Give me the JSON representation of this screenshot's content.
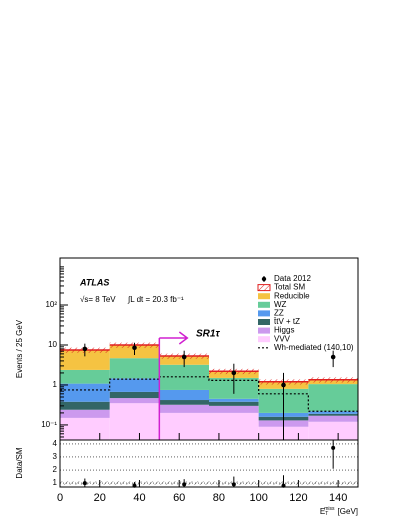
{
  "chart_data": {
    "type": "stacked_histogram",
    "y_label": "Events / 25 GeV",
    "ratio_label": "Data/SM",
    "x_label": {
      "symbol": "E",
      "sub": "T",
      "sup": "miss",
      "unit": "[GeV]"
    },
    "experiment": "ATLAS",
    "energy": "√s= 8 TeV",
    "luminosity": "∫L dt = 20.3 fb⁻¹",
    "region": "SR1τ",
    "cut": 50,
    "bins": [
      0,
      25,
      50,
      75,
      100,
      125,
      150
    ],
    "xlim": [
      0,
      150
    ],
    "xticks": [
      0,
      20,
      40,
      60,
      80,
      100,
      120,
      140
    ],
    "ylim": [
      0.042,
      1500
    ],
    "log_y": true,
    "yticks": [
      {
        "value": 0.1,
        "label": "10⁻¹"
      },
      1,
      10,
      {
        "value": 100,
        "label": "10²"
      }
    ],
    "stack": [
      {
        "name": "VVV",
        "color": "#ffccff",
        "values": [
          0.15,
          0.35,
          0.2,
          0.2,
          0.09,
          0.12
        ]
      },
      {
        "name": "Higgs",
        "color": "#cc99ee",
        "values": [
          0.09,
          0.12,
          0.12,
          0.1,
          0.04,
          0.05
        ]
      },
      {
        "name": "t̄tV + tZ",
        "color": "#336666",
        "values": [
          0.14,
          0.2,
          0.1,
          0.08,
          0.03,
          0.02
        ]
      },
      {
        "name": "ZZ",
        "color": "#5599ee",
        "values": [
          0.7,
          0.8,
          0.33,
          0.07,
          0.04,
          0.03
        ]
      },
      {
        "name": "WZ",
        "color": "#66cc99",
        "values": [
          1.3,
          3.2,
          2.45,
          1.05,
          0.6,
          0.83
        ]
      },
      {
        "name": "Reducible",
        "color": "#f5c342",
        "values": [
          5.1,
          5.3,
          2.1,
          0.7,
          0.4,
          0.3
        ]
      }
    ],
    "total_name": "Total SM",
    "total_color": "#e02020",
    "data": {
      "name": "Data 2012",
      "values": [
        8,
        8.5,
        5,
        2,
        1,
        5
      ],
      "errors": [
        2.8,
        2.9,
        2.2,
        1.4,
        1,
        2.2
      ]
    },
    "signal": {
      "name": "Wh-mediated (140,10)",
      "values": [
        0.75,
        1.4,
        1.6,
        1.3,
        0.6,
        0.22
      ]
    },
    "ratio": {
      "values": [
        1.0,
        0.8,
        0.9,
        0.9,
        0.8,
        3.7
      ],
      "errors": [
        0.35,
        0.27,
        0.4,
        0.6,
        0.8,
        1.6
      ],
      "band": [
        0.85,
        1.15
      ],
      "ylim": [
        0.7,
        4.3
      ],
      "yticks": [
        1,
        2,
        3,
        4
      ]
    }
  }
}
